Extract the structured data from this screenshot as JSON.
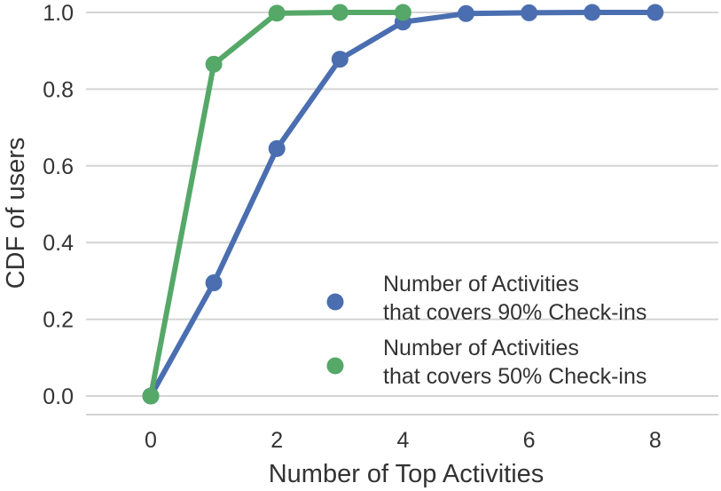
{
  "chart_data": {
    "type": "line",
    "xlabel": "Number of Top Activities",
    "ylabel": "CDF of users",
    "xlim": [
      -1,
      9.5
    ],
    "ylim": [
      -0.05,
      1.0
    ],
    "xticks": [
      "0",
      "2",
      "4",
      "6",
      "8"
    ],
    "yticks": [
      "0.0",
      "0.2",
      "0.4",
      "0.6",
      "0.8",
      "1.0"
    ],
    "grid": "horizontal",
    "legend_position": "bottom-right",
    "series": [
      {
        "name_lines": [
          "Number of Activities",
          "that covers 90% Check-ins"
        ],
        "color": "#4a6eb0",
        "x": [
          0,
          1,
          2,
          3,
          4,
          5,
          6,
          7,
          8
        ],
        "y": [
          0.0,
          0.295,
          0.645,
          0.878,
          0.975,
          0.997,
          0.999,
          1.0,
          1.0
        ]
      },
      {
        "name_lines": [
          "Number of Activities",
          "that covers 50% Check-ins"
        ],
        "color": "#55a868",
        "x": [
          0,
          1,
          2,
          3,
          4
        ],
        "y": [
          0.0,
          0.865,
          0.998,
          1.0,
          1.0
        ]
      }
    ]
  }
}
